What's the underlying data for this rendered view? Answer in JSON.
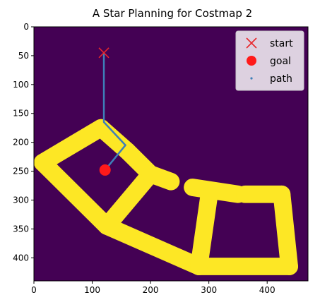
{
  "chart_data": {
    "type": "heatmap",
    "title": "A Star Planning for Costmap 2",
    "xlabel": "",
    "ylabel": "",
    "xlim": [
      0,
      470
    ],
    "ylim": [
      440,
      0
    ],
    "x_ticks": [
      0,
      100,
      200,
      300,
      400
    ],
    "y_ticks": [
      0,
      50,
      100,
      150,
      200,
      250,
      300,
      350,
      400
    ],
    "grid": false,
    "background_color": "#440154",
    "obstacle_color": "#fde725",
    "obstacle_segments": [
      [
        [
          115,
          175
        ],
        [
          160,
          215
        ]
      ],
      [
        [
          115,
          175
        ],
        [
          15,
          235
        ]
      ],
      [
        [
          15,
          235
        ],
        [
          125,
          345
        ]
      ],
      [
        [
          125,
          345
        ],
        [
          200,
          255
        ]
      ],
      [
        [
          160,
          215
        ],
        [
          200,
          255
        ]
      ],
      [
        [
          200,
          255
        ],
        [
          235,
          268
        ]
      ],
      [
        [
          272,
          278
        ],
        [
          350,
          290
        ]
      ],
      [
        [
          362,
          290
        ],
        [
          425,
          290
        ]
      ],
      [
        [
          425,
          290
        ],
        [
          438,
          415
        ]
      ],
      [
        [
          125,
          345
        ],
        [
          283,
          415
        ]
      ],
      [
        [
          283,
          415
        ],
        [
          438,
          415
        ]
      ],
      [
        [
          300,
          295
        ],
        [
          283,
          415
        ]
      ]
    ],
    "obstacle_width": 30,
    "legend": {
      "position": "top-right",
      "entries": [
        "start",
        "goal",
        "path"
      ]
    },
    "start": {
      "name": "start",
      "x": 120,
      "y": 45,
      "marker": "x",
      "color": "#e8262b"
    },
    "goal": {
      "name": "goal",
      "x": 122,
      "y": 248,
      "marker": "circle",
      "color": "#ff1a1a"
    },
    "path": {
      "name": "path",
      "color": "#3e7fb8",
      "points": [
        [
          120,
          45
        ],
        [
          120,
          165
        ],
        [
          157,
          205
        ],
        [
          122,
          248
        ]
      ]
    }
  }
}
